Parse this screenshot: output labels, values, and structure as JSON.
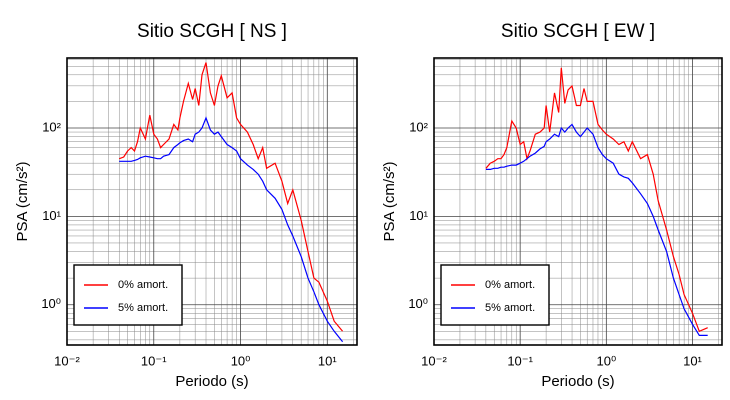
{
  "chart_data": [
    {
      "type": "line",
      "title": "Sitio SCGH [ NS ]",
      "xlabel": "Periodo (s)",
      "ylabel": "PSA (cm/s²)",
      "log_x": true,
      "log_y": true,
      "grid": true,
      "legend": "lower left",
      "xlim": [
        0.01,
        22
      ],
      "ylim": [
        0.35,
        620
      ],
      "xticks": [
        {
          "value": 0.01,
          "label": "10⁻²"
        },
        {
          "value": 0.1,
          "label": "10⁻¹"
        },
        {
          "value": 1,
          "label": "10⁰"
        },
        {
          "value": 10,
          "label": "10¹"
        }
      ],
      "yticks": [
        {
          "value": 1,
          "label": "10⁰"
        },
        {
          "value": 10,
          "label": "10¹"
        },
        {
          "value": 100,
          "label": "10²"
        }
      ],
      "x": [
        0.04,
        0.045,
        0.05,
        0.055,
        0.06,
        0.065,
        0.07,
        0.08,
        0.09,
        0.1,
        0.11,
        0.12,
        0.13,
        0.15,
        0.17,
        0.19,
        0.2,
        0.22,
        0.25,
        0.28,
        0.3,
        0.33,
        0.36,
        0.4,
        0.45,
        0.5,
        0.55,
        0.6,
        0.7,
        0.8,
        0.9,
        1,
        1.2,
        1.4,
        1.6,
        1.8,
        2,
        2.5,
        3,
        3.5,
        4,
        5,
        6,
        7,
        8,
        10,
        12,
        15
      ],
      "series": [
        {
          "name": "0% amort.",
          "color": "#ff0000",
          "values": [
            45,
            47,
            55,
            60,
            55,
            70,
            100,
            75,
            140,
            85,
            75,
            60,
            65,
            75,
            110,
            95,
            130,
            200,
            320,
            210,
            280,
            180,
            400,
            550,
            250,
            180,
            300,
            390,
            220,
            250,
            130,
            110,
            90,
            65,
            45,
            60,
            35,
            40,
            25,
            14,
            20,
            9,
            4,
            2,
            1.8,
            1.1,
            0.65,
            0.5
          ]
        },
        {
          "name": "5% amort.",
          "color": "#0000ff",
          "values": [
            42,
            42,
            42,
            42,
            43,
            44,
            46,
            48,
            47,
            46,
            45,
            45,
            48,
            50,
            60,
            65,
            68,
            72,
            75,
            70,
            85,
            90,
            100,
            130,
            95,
            85,
            90,
            80,
            65,
            60,
            55,
            45,
            38,
            34,
            30,
            25,
            20,
            16,
            12,
            8,
            6,
            3.5,
            2,
            1.4,
            1,
            0.65,
            0.5,
            0.38
          ]
        }
      ]
    },
    {
      "type": "line",
      "title": "Sitio SCGH [ EW ]",
      "xlabel": "Periodo (s)",
      "ylabel": "PSA (cm/s²)",
      "log_x": true,
      "log_y": true,
      "grid": true,
      "legend": "lower left",
      "xlim": [
        0.01,
        22
      ],
      "ylim": [
        0.35,
        620
      ],
      "xticks": [
        {
          "value": 0.01,
          "label": "10⁻²"
        },
        {
          "value": 0.1,
          "label": "10⁻¹"
        },
        {
          "value": 1,
          "label": "10⁰"
        },
        {
          "value": 10,
          "label": "10¹"
        }
      ],
      "yticks": [
        {
          "value": 1,
          "label": "10⁰"
        },
        {
          "value": 10,
          "label": "10¹"
        },
        {
          "value": 100,
          "label": "10²"
        }
      ],
      "x": [
        0.04,
        0.045,
        0.05,
        0.055,
        0.06,
        0.065,
        0.07,
        0.08,
        0.09,
        0.1,
        0.11,
        0.12,
        0.13,
        0.15,
        0.17,
        0.19,
        0.2,
        0.22,
        0.25,
        0.28,
        0.3,
        0.33,
        0.36,
        0.4,
        0.45,
        0.5,
        0.55,
        0.6,
        0.7,
        0.8,
        0.9,
        1,
        1.2,
        1.4,
        1.6,
        1.8,
        2,
        2.5,
        3,
        3.5,
        4,
        5,
        6,
        7,
        8,
        10,
        12,
        15
      ],
      "series": [
        {
          "name": "0% amort.",
          "color": "#ff0000",
          "values": [
            35,
            40,
            42,
            45,
            45,
            50,
            60,
            120,
            100,
            65,
            70,
            45,
            55,
            85,
            90,
            100,
            180,
            90,
            250,
            150,
            480,
            190,
            270,
            300,
            180,
            180,
            280,
            200,
            200,
            110,
            95,
            85,
            75,
            65,
            70,
            55,
            70,
            45,
            50,
            30,
            15,
            7,
            3.5,
            2.2,
            1.3,
            0.8,
            0.5,
            0.55
          ]
        },
        {
          "name": "5% amort.",
          "color": "#0000ff",
          "values": [
            34,
            34,
            35,
            35,
            36,
            36,
            37,
            38,
            38,
            40,
            42,
            45,
            48,
            52,
            58,
            62,
            70,
            75,
            85,
            80,
            100,
            90,
            100,
            110,
            90,
            80,
            90,
            100,
            85,
            60,
            50,
            45,
            40,
            30,
            28,
            27,
            24,
            18,
            14,
            10,
            7,
            4,
            2,
            1.3,
            0.9,
            0.6,
            0.45,
            0.45
          ]
        }
      ]
    }
  ]
}
